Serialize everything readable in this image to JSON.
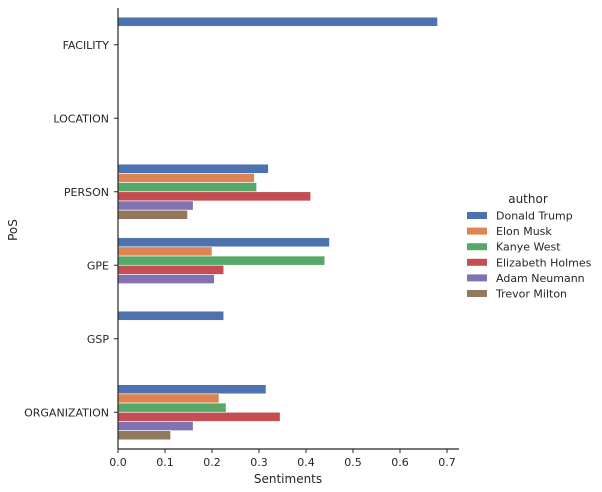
{
  "chart_data": {
    "type": "bar",
    "orientation": "horizontal",
    "categories": [
      "FACILITY",
      "LOCATION",
      "PERSON",
      "GPE",
      "GSP",
      "ORGANIZATION"
    ],
    "xlabel": "Sentiments",
    "ylabel": "PoS",
    "xlim": [
      0,
      0.72
    ],
    "xticks": [
      "0.0",
      "0.1",
      "0.2",
      "0.3",
      "0.4",
      "0.5",
      "0.6",
      "0.7"
    ],
    "legend_title": "author",
    "legend_position": "right",
    "grid": false,
    "series": [
      {
        "name": "Donald Trump",
        "color": "#4c72b0",
        "values": [
          0.68,
          null,
          0.32,
          0.45,
          0.225,
          0.315
        ]
      },
      {
        "name": "Elon Musk",
        "color": "#dd8452",
        "values": [
          null,
          null,
          0.29,
          0.2,
          null,
          0.215
        ]
      },
      {
        "name": "Kanye West",
        "color": "#55a868",
        "values": [
          null,
          null,
          0.295,
          0.44,
          null,
          0.23
        ]
      },
      {
        "name": "Elizabeth Holmes",
        "color": "#c44e52",
        "values": [
          null,
          null,
          0.41,
          0.225,
          null,
          0.345
        ]
      },
      {
        "name": "Adam Neumann",
        "color": "#8172b3",
        "values": [
          null,
          null,
          0.16,
          0.205,
          null,
          0.16
        ]
      },
      {
        "name": "Trevor Milton",
        "color": "#937860",
        "values": [
          null,
          null,
          0.148,
          null,
          null,
          0.112
        ]
      }
    ]
  }
}
